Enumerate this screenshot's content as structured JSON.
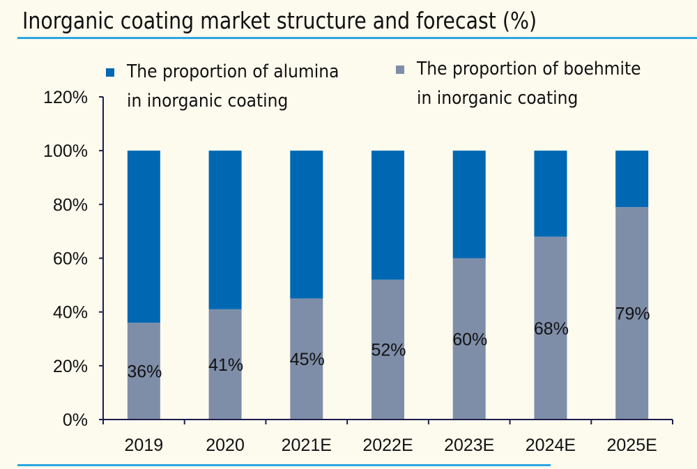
{
  "chart_data": {
    "type": "bar",
    "stacked": true,
    "title": "Inorganic coating market structure and forecast (%)",
    "categories": [
      "2019",
      "2020",
      "2021E",
      "2022E",
      "2023E",
      "2024E",
      "2025E"
    ],
    "series": [
      {
        "name": "The proportion of boehmite in inorganic coating",
        "legend_lines": [
          "The proportion of boehmite",
          "in inorganic coating"
        ],
        "values": [
          36,
          41,
          45,
          52,
          60,
          68,
          79
        ],
        "labels": [
          "36%",
          "41%",
          "45%",
          "52%",
          "60%",
          "68%",
          "79%"
        ],
        "color": "#7f8ea8"
      },
      {
        "name": "The proportion of alumina in inorganic coating",
        "legend_lines": [
          "The proportion of alumina",
          "in inorganic coating"
        ],
        "values": [
          64,
          59,
          55,
          48,
          40,
          32,
          21
        ],
        "color": "#0068b3"
      }
    ],
    "ylim": [
      0,
      120
    ],
    "yticks": [
      0,
      20,
      40,
      60,
      80,
      100,
      120
    ],
    "ytick_labels": [
      "0%",
      "20%",
      "40%",
      "60%",
      "80%",
      "100%",
      "120%"
    ],
    "grid": false,
    "legend_position": "top",
    "axis_color": "#1c1c4e",
    "accent_rule_color": "#2aa6e0"
  }
}
